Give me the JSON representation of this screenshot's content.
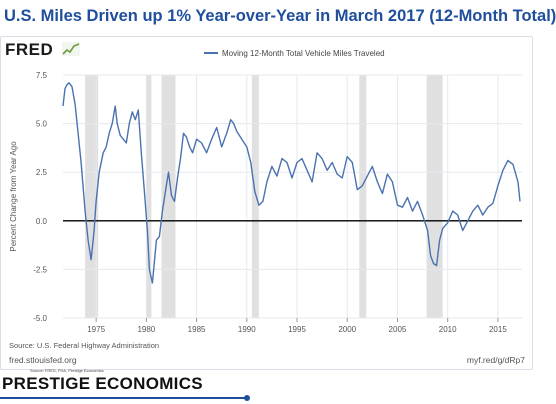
{
  "headline": "U.S. Miles Driven up 1% Year-over-Year in March 2017 (12-Month Total)",
  "fred": {
    "logo_text": "FRED",
    "logo_icon": "chart-line-icon",
    "source": "Source: U.S. Federal Highway Administration",
    "site": "fred.stlouisfed.org",
    "short_url": "myf.red/g/dRp7"
  },
  "brand": {
    "name": "PRESTIGE ECONOMICS",
    "sub": "Source: FRED, FHA, Prestige Economics"
  },
  "colors": {
    "title": "#1f4e9c",
    "series": "#4a72b0",
    "recession": "#e0e0e0",
    "zero_line": "#000000",
    "grid": "#e5e9ef"
  },
  "chart_data": {
    "type": "line",
    "title": "U.S. Miles Driven up 1% Year-over-Year in March 2017 (12-Month Total)",
    "xlabel": "",
    "ylabel": "Percent Change from Year Ago",
    "xlim": [
      1971.7,
      2017.4
    ],
    "ylim": [
      -5.0,
      7.5
    ],
    "yticks": [
      7.5,
      5.0,
      2.5,
      0.0,
      -2.5,
      -5.0
    ],
    "ytick_labels": [
      "7.5",
      "5.0",
      "2.5",
      "0.0",
      "-2.5",
      "-5.0"
    ],
    "xticks": [
      1975,
      1980,
      1985,
      1990,
      1995,
      2000,
      2005,
      2010,
      2015
    ],
    "xtick_labels": [
      "1975",
      "1980",
      "1985",
      "1990",
      "1995",
      "2000",
      "2005",
      "2010",
      "2015"
    ],
    "grid": true,
    "legend_position": "top-center",
    "zero_line": true,
    "recessions": [
      [
        1973.9,
        1975.2
      ],
      [
        1980.0,
        1980.5
      ],
      [
        1981.5,
        1982.9
      ],
      [
        1990.5,
        1991.2
      ],
      [
        2001.2,
        2001.9
      ],
      [
        2007.9,
        2009.5
      ]
    ],
    "series": [
      {
        "name": "Moving 12-Month Total Vehicle Miles Traveled",
        "x": [
          1971.7,
          1971.9,
          1972.1,
          1972.3,
          1972.6,
          1972.9,
          1973.2,
          1973.5,
          1973.9,
          1974.2,
          1974.5,
          1974.8,
          1975.0,
          1975.3,
          1975.7,
          1976.0,
          1976.3,
          1976.6,
          1976.9,
          1977.1,
          1977.4,
          1977.7,
          1978.0,
          1978.3,
          1978.6,
          1978.9,
          1979.2,
          1979.5,
          1979.8,
          1980.1,
          1980.3,
          1980.6,
          1981.0,
          1981.3,
          1981.6,
          1981.9,
          1982.2,
          1982.5,
          1982.8,
          1983.1,
          1983.4,
          1983.7,
          1984.0,
          1984.3,
          1984.6,
          1985.0,
          1985.5,
          1986.0,
          1986.5,
          1987.0,
          1987.5,
          1988.0,
          1988.4,
          1988.7,
          1989.0,
          1989.5,
          1990.0,
          1990.4,
          1990.8,
          1991.2,
          1991.6,
          1992.0,
          1992.5,
          1993.0,
          1993.5,
          1994.0,
          1994.5,
          1995.0,
          1995.5,
          1996.0,
          1996.5,
          1997.0,
          1997.5,
          1998.0,
          1998.5,
          1999.0,
          1999.5,
          2000.0,
          2000.5,
          2001.0,
          2001.5,
          2002.0,
          2002.5,
          2003.0,
          2003.5,
          2004.0,
          2004.5,
          2005.0,
          2005.5,
          2006.0,
          2006.5,
          2007.0,
          2007.5,
          2008.0,
          2008.3,
          2008.6,
          2008.9,
          2009.2,
          2009.5,
          2010.0,
          2010.5,
          2011.0,
          2011.5,
          2012.0,
          2012.5,
          2013.0,
          2013.5,
          2014.0,
          2014.5,
          2015.0,
          2015.5,
          2016.0,
          2016.5,
          2017.0,
          2017.2
        ],
        "values": [
          5.9,
          6.8,
          7.0,
          7.1,
          6.9,
          6.0,
          4.5,
          3.0,
          0.5,
          -1.0,
          -2.0,
          -0.5,
          1.0,
          2.5,
          3.5,
          3.8,
          4.5,
          5.0,
          5.9,
          5.0,
          4.4,
          4.2,
          4.0,
          5.0,
          5.6,
          5.2,
          5.7,
          3.5,
          1.5,
          -0.5,
          -2.5,
          -3.2,
          -1.0,
          -0.8,
          0.5,
          1.5,
          2.5,
          1.3,
          1.0,
          2.2,
          3.2,
          4.5,
          4.3,
          3.8,
          3.5,
          4.2,
          4.0,
          3.5,
          4.2,
          4.8,
          3.8,
          4.5,
          5.2,
          5.0,
          4.6,
          4.2,
          3.8,
          3.0,
          1.5,
          0.8,
          1.0,
          2.0,
          2.8,
          2.3,
          3.2,
          3.0,
          2.2,
          3.0,
          3.2,
          2.6,
          2.0,
          3.5,
          3.2,
          2.6,
          3.0,
          2.4,
          2.2,
          3.3,
          3.0,
          1.6,
          1.8,
          2.3,
          2.8,
          2.0,
          1.4,
          2.4,
          2.0,
          0.8,
          0.7,
          1.2,
          0.5,
          1.0,
          0.3,
          -0.5,
          -1.8,
          -2.2,
          -2.3,
          -1.0,
          -0.4,
          -0.1,
          0.5,
          0.3,
          -0.5,
          0.0,
          0.5,
          0.8,
          0.3,
          0.7,
          0.9,
          1.8,
          2.6,
          3.1,
          2.9,
          2.0,
          1.0
        ]
      }
    ]
  }
}
